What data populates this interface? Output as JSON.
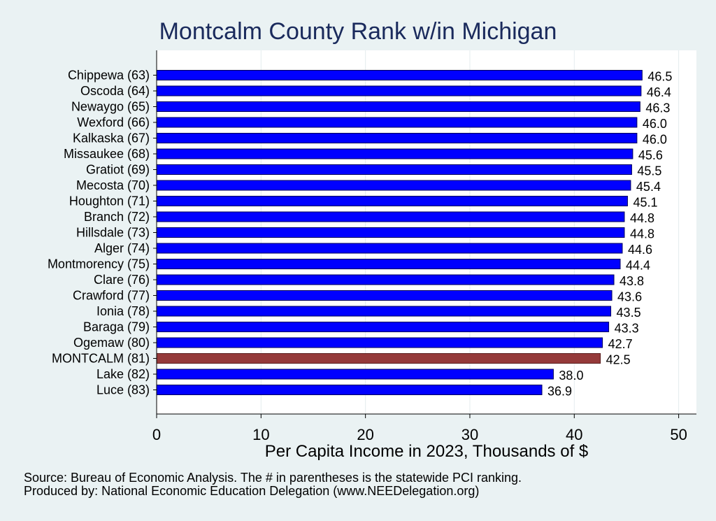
{
  "chart_data": {
    "type": "bar",
    "orientation": "horizontal",
    "title": "Montcalm County Rank w/in Michigan",
    "xlabel": "Per Capita Income in 2023, Thousands of $",
    "xlim": [
      0,
      50
    ],
    "xticks": [
      "0",
      "10",
      "20",
      "30",
      "40",
      "50"
    ],
    "grid": true,
    "bar_color": "#0000ff",
    "highlight_color": "#953a3a",
    "bars": [
      {
        "label": "Chippewa (63)",
        "value": 46.5,
        "value_label": "46.5",
        "highlight": false
      },
      {
        "label": "Oscoda (64)",
        "value": 46.4,
        "value_label": "46.4",
        "highlight": false
      },
      {
        "label": "Newaygo (65)",
        "value": 46.3,
        "value_label": "46.3",
        "highlight": false
      },
      {
        "label": "Wexford (66)",
        "value": 46.0,
        "value_label": "46.0",
        "highlight": false
      },
      {
        "label": "Kalkaska (67)",
        "value": 46.0,
        "value_label": "46.0",
        "highlight": false
      },
      {
        "label": "Missaukee (68)",
        "value": 45.6,
        "value_label": "45.6",
        "highlight": false
      },
      {
        "label": "Gratiot (69)",
        "value": 45.5,
        "value_label": "45.5",
        "highlight": false
      },
      {
        "label": "Mecosta (70)",
        "value": 45.4,
        "value_label": "45.4",
        "highlight": false
      },
      {
        "label": "Houghton (71)",
        "value": 45.1,
        "value_label": "45.1",
        "highlight": false
      },
      {
        "label": "Branch (72)",
        "value": 44.8,
        "value_label": "44.8",
        "highlight": false
      },
      {
        "label": "Hillsdale (73)",
        "value": 44.8,
        "value_label": "44.8",
        "highlight": false
      },
      {
        "label": "Alger (74)",
        "value": 44.6,
        "value_label": "44.6",
        "highlight": false
      },
      {
        "label": "Montmorency (75)",
        "value": 44.4,
        "value_label": "44.4",
        "highlight": false
      },
      {
        "label": "Clare (76)",
        "value": 43.8,
        "value_label": "43.8",
        "highlight": false
      },
      {
        "label": "Crawford (77)",
        "value": 43.6,
        "value_label": "43.6",
        "highlight": false
      },
      {
        "label": "Ionia (78)",
        "value": 43.5,
        "value_label": "43.5",
        "highlight": false
      },
      {
        "label": "Baraga (79)",
        "value": 43.3,
        "value_label": "43.3",
        "highlight": false
      },
      {
        "label": "Ogemaw (80)",
        "value": 42.7,
        "value_label": "42.7",
        "highlight": false
      },
      {
        "label": "MONTCALM (81)",
        "value": 42.5,
        "value_label": "42.5",
        "highlight": true
      },
      {
        "label": "Lake (82)",
        "value": 38.0,
        "value_label": "38.0",
        "highlight": false
      },
      {
        "label": "Luce (83)",
        "value": 36.9,
        "value_label": "36.9",
        "highlight": false
      }
    ]
  },
  "footer": {
    "source": "Source: Bureau of Economic Analysis. The # in parentheses is the statewide PCI ranking.",
    "produced_by": "Produced by: National Economic Education Delegation (www.NEEDelegation.org)"
  }
}
